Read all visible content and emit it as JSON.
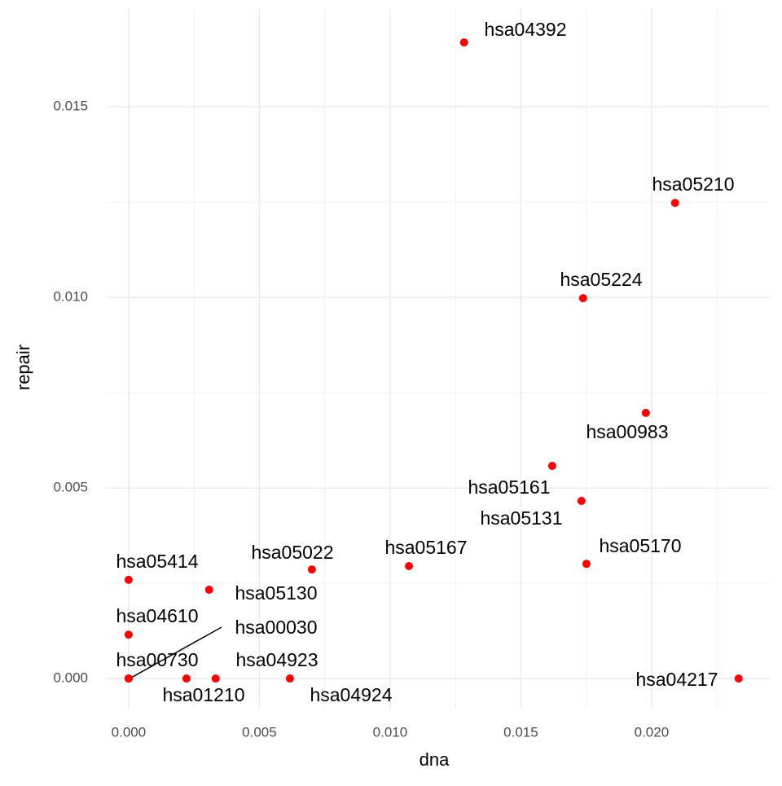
{
  "chart_data": {
    "type": "scatter",
    "x_label": "dna",
    "y_label": "repair",
    "color": "#ff0000",
    "grid": true,
    "xlim": [
      -0.00087,
      0.02452
    ],
    "ylim": [
      -0.00079,
      0.01759
    ],
    "xticks": [
      {
        "value": 0,
        "label": "0.000"
      },
      {
        "value": 0.005,
        "label": "0.005"
      },
      {
        "value": 0.01,
        "label": "0.010"
      },
      {
        "value": 0.015,
        "label": "0.015"
      },
      {
        "value": 0.02,
        "label": "0.020"
      }
    ],
    "yticks": [
      {
        "value": 0,
        "label": "0.000"
      },
      {
        "value": 0.005,
        "label": "0.005"
      },
      {
        "value": 0.01,
        "label": "0.010"
      },
      {
        "value": 0.015,
        "label": "0.015"
      }
    ],
    "labels": [
      "hsa04392",
      "hsa05210",
      "hsa05224",
      "hsa00983",
      "hsa05161",
      "hsa05131",
      "hsa05170",
      "hsa05167",
      "hsa05022",
      "hsa05414",
      "hsa05130",
      "hsa04610",
      "hsa00030",
      "hsa00730",
      "hsa01210",
      "hsa04923",
      "hsa04924",
      "hsa04217"
    ],
    "x": [
      0.01283,
      0.0209,
      0.01738,
      0.01978,
      0.0162,
      0.01732,
      0.01751,
      0.01072,
      0.00701,
      0,
      0.00308,
      0,
      0,
      0,
      0.00221,
      0.00333,
      0.00617,
      0.02333
    ],
    "values": [
      0.01669,
      0.01248,
      0.00998,
      0.00697,
      0.00558,
      0.00466,
      0.00301,
      0.00295,
      0.00286,
      0.00259,
      0.00233,
      0.00115,
      0,
      0,
      0,
      0,
      0,
      0
    ]
  }
}
